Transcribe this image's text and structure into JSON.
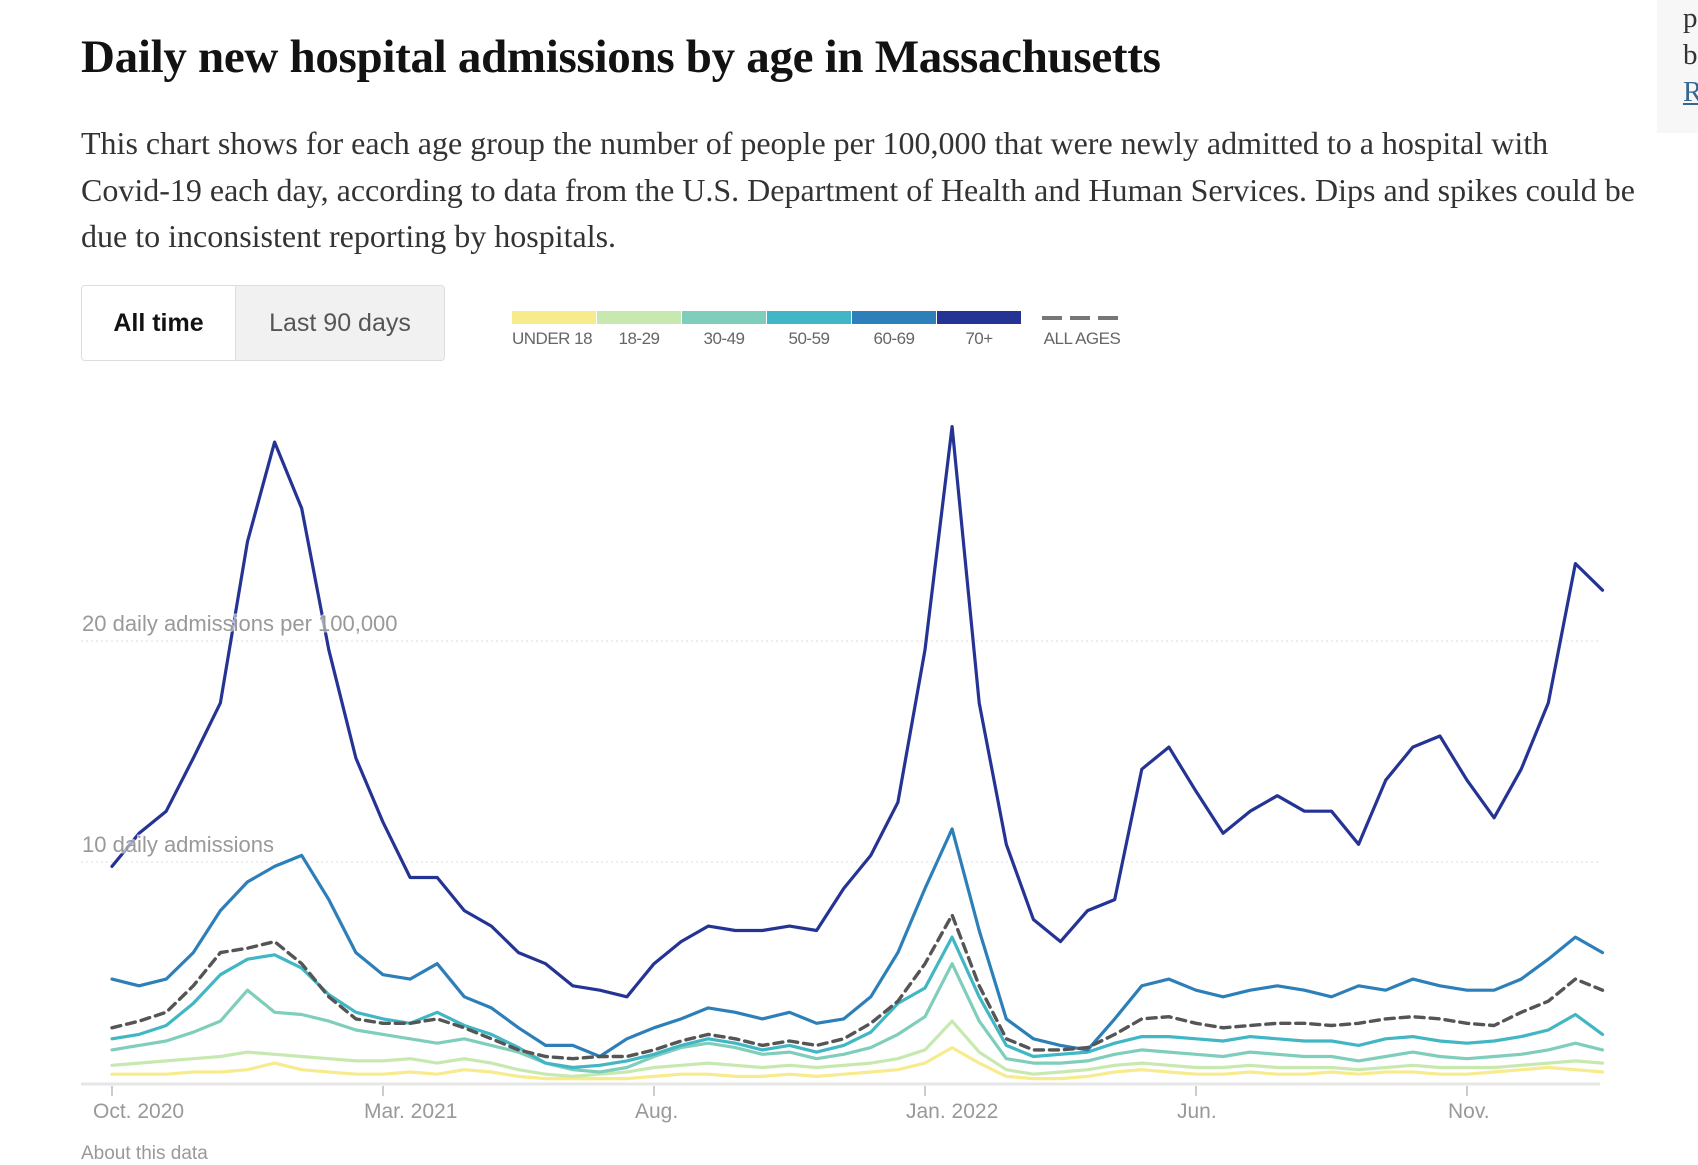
{
  "header": {
    "title": "Daily new hospital admissions by age in Massachusetts",
    "description": "This chart shows for each age group the number of people per 100,000 that were newly admitted to a hospital with Covid-19 each day, according to data from the U.S. Department of Health and Human Services. Dips and spikes could be due to inconsistent reporting by hospitals."
  },
  "controls": {
    "all_time": "All time",
    "last_90_days": "Last 90 days",
    "selected": "All time"
  },
  "sidebar": {
    "fragments": [
      "p",
      "b",
      "R"
    ]
  },
  "footer": {
    "about": "About this data"
  },
  "chart_data": {
    "type": "line",
    "title": "Daily new hospital admissions by age in Massachusetts",
    "ylabel": "daily admissions per 100,000",
    "ylim": [
      0,
      30
    ],
    "grid": true,
    "gridlines": [
      {
        "value": 20,
        "label": "20 daily admissions per 100,000"
      },
      {
        "value": 10,
        "label": "10 daily admissions"
      }
    ],
    "x_unit": "months since Oct. 1, 2020 (half-month steps)",
    "x_start": 0,
    "x_step": 0.5,
    "xlim": [
      0,
      27.5
    ],
    "x_ticks": [
      {
        "value": 0,
        "label": "Oct. 2020"
      },
      {
        "value": 5,
        "label": "Mar. 2021"
      },
      {
        "value": 10,
        "label": "Aug."
      },
      {
        "value": 15,
        "label": "Jan. 2022"
      },
      {
        "value": 20,
        "label": "Jun."
      },
      {
        "value": 25,
        "label": "Nov."
      }
    ],
    "legend_placement": "top",
    "series": [
      {
        "name": "UNDER 18",
        "color": "#f7eb8d",
        "dashed": false,
        "values": [
          0.4,
          0.4,
          0.4,
          0.5,
          0.5,
          0.6,
          0.9,
          0.6,
          0.5,
          0.4,
          0.4,
          0.5,
          0.4,
          0.6,
          0.5,
          0.3,
          0.2,
          0.2,
          0.2,
          0.2,
          0.3,
          0.4,
          0.4,
          0.3,
          0.3,
          0.4,
          0.3,
          0.4,
          0.5,
          0.6,
          0.9,
          1.6,
          0.9,
          0.3,
          0.2,
          0.2,
          0.3,
          0.5,
          0.6,
          0.5,
          0.4,
          0.4,
          0.5,
          0.4,
          0.4,
          0.5,
          0.4,
          0.5,
          0.5,
          0.4,
          0.4,
          0.5,
          0.6,
          0.7,
          0.6,
          0.5
        ]
      },
      {
        "name": "18-29",
        "color": "#c7e9b0",
        "dashed": false,
        "values": [
          0.8,
          0.9,
          1.0,
          1.1,
          1.2,
          1.4,
          1.3,
          1.2,
          1.1,
          1.0,
          1.0,
          1.1,
          0.9,
          1.1,
          0.9,
          0.6,
          0.4,
          0.3,
          0.4,
          0.5,
          0.7,
          0.8,
          0.9,
          0.8,
          0.7,
          0.8,
          0.7,
          0.8,
          0.9,
          1.1,
          1.5,
          2.8,
          1.4,
          0.6,
          0.4,
          0.5,
          0.6,
          0.8,
          0.9,
          0.8,
          0.7,
          0.7,
          0.8,
          0.7,
          0.7,
          0.7,
          0.6,
          0.7,
          0.8,
          0.7,
          0.7,
          0.7,
          0.8,
          0.9,
          1.0,
          0.9
        ]
      },
      {
        "name": "30-49",
        "color": "#7fcdbb",
        "dashed": false,
        "values": [
          1.5,
          1.7,
          1.9,
          2.3,
          2.8,
          4.2,
          3.2,
          3.1,
          2.8,
          2.4,
          2.2,
          2.0,
          1.8,
          2.0,
          1.7,
          1.4,
          0.9,
          0.6,
          0.5,
          0.7,
          1.2,
          1.6,
          1.8,
          1.6,
          1.3,
          1.4,
          1.1,
          1.3,
          1.6,
          2.2,
          3.0,
          5.4,
          2.8,
          1.1,
          0.9,
          0.9,
          1.0,
          1.3,
          1.5,
          1.4,
          1.3,
          1.2,
          1.4,
          1.3,
          1.2,
          1.2,
          1.0,
          1.2,
          1.4,
          1.2,
          1.1,
          1.2,
          1.3,
          1.5,
          1.8,
          1.5
        ]
      },
      {
        "name": "50-59",
        "color": "#41b6c4",
        "dashed": false,
        "values": [
          2.0,
          2.2,
          2.6,
          3.6,
          4.9,
          5.6,
          5.8,
          5.2,
          4.0,
          3.2,
          2.9,
          2.7,
          3.2,
          2.6,
          2.2,
          1.6,
          0.9,
          0.7,
          0.8,
          1.0,
          1.3,
          1.7,
          2.0,
          1.8,
          1.5,
          1.7,
          1.4,
          1.7,
          2.3,
          3.6,
          4.3,
          6.6,
          3.9,
          1.7,
          1.2,
          1.3,
          1.4,
          1.8,
          2.1,
          2.1,
          2.0,
          1.9,
          2.1,
          2.0,
          1.9,
          1.9,
          1.7,
          2.0,
          2.1,
          1.9,
          1.8,
          1.9,
          2.1,
          2.4,
          3.1,
          2.2
        ]
      },
      {
        "name": "60-69",
        "color": "#2c7fb8",
        "dashed": false,
        "values": [
          4.7,
          4.4,
          4.7,
          5.9,
          7.8,
          9.1,
          9.8,
          10.3,
          8.3,
          5.9,
          4.9,
          4.7,
          5.4,
          3.9,
          3.4,
          2.5,
          1.7,
          1.7,
          1.2,
          2.0,
          2.5,
          2.9,
          3.4,
          3.2,
          2.9,
          3.2,
          2.7,
          2.9,
          3.9,
          5.9,
          8.8,
          11.5,
          6.9,
          2.9,
          2.0,
          1.7,
          1.5,
          2.9,
          4.4,
          4.7,
          4.2,
          3.9,
          4.2,
          4.4,
          4.2,
          3.9,
          4.4,
          4.2,
          4.7,
          4.4,
          4.2,
          4.2,
          4.7,
          5.6,
          6.6,
          5.9
        ]
      },
      {
        "name": "70+",
        "color": "#253494",
        "dashed": false,
        "values": [
          9.8,
          11.3,
          12.3,
          14.7,
          17.2,
          24.5,
          29.0,
          26.0,
          19.6,
          14.7,
          11.8,
          9.3,
          9.3,
          7.8,
          7.1,
          5.9,
          5.4,
          4.4,
          4.2,
          3.9,
          5.4,
          6.4,
          7.1,
          6.9,
          6.9,
          7.1,
          6.9,
          8.8,
          10.3,
          12.7,
          19.6,
          29.7,
          17.2,
          10.8,
          7.4,
          6.4,
          7.8,
          8.3,
          14.2,
          15.2,
          13.2,
          11.3,
          12.3,
          13.0,
          12.3,
          12.3,
          10.8,
          13.7,
          15.2,
          15.7,
          13.7,
          12.0,
          14.2,
          17.2,
          23.5,
          22.3
        ]
      },
      {
        "name": "ALL AGES",
        "color": "#555555",
        "dashed": true,
        "values": [
          2.5,
          2.8,
          3.2,
          4.4,
          5.9,
          6.1,
          6.4,
          5.4,
          3.9,
          2.9,
          2.7,
          2.7,
          2.9,
          2.5,
          2.0,
          1.5,
          1.2,
          1.1,
          1.2,
          1.2,
          1.5,
          1.9,
          2.2,
          2.0,
          1.7,
          1.9,
          1.7,
          2.0,
          2.7,
          3.7,
          5.4,
          7.6,
          4.4,
          2.0,
          1.5,
          1.5,
          1.6,
          2.2,
          2.9,
          3.0,
          2.7,
          2.5,
          2.6,
          2.7,
          2.7,
          2.6,
          2.7,
          2.9,
          3.0,
          2.9,
          2.7,
          2.6,
          3.2,
          3.7,
          4.7,
          4.2
        ]
      }
    ]
  }
}
